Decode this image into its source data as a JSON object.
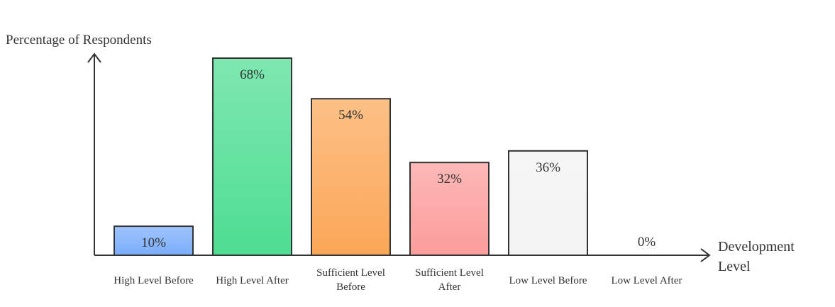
{
  "chart_data": {
    "type": "bar",
    "ylabel": "Percentage of Respondents",
    "xlabel_lines": [
      "Development",
      "Level"
    ],
    "ylim": [
      0,
      68
    ],
    "grid": false,
    "categories": [
      {
        "label_lines": [
          "High Level Before"
        ],
        "value": 10,
        "display": "10%",
        "color": "#7aadfb"
      },
      {
        "label_lines": [
          "High Level After"
        ],
        "value": 68,
        "display": "68%",
        "color": "#4ddd92"
      },
      {
        "label_lines": [
          "Sufficient Level",
          "Before"
        ],
        "value": 54,
        "display": "54%",
        "color": "#fba757"
      },
      {
        "label_lines": [
          "Sufficient Level",
          "After"
        ],
        "value": 32,
        "display": "32%",
        "color": "#fb9d9b"
      },
      {
        "label_lines": [
          "Low Level Before"
        ],
        "value": 36,
        "display": "36%",
        "color": "#f3f3f3"
      },
      {
        "label_lines": [
          "Low Level After"
        ],
        "value": 0,
        "display": "0%",
        "color": "#ffffff"
      }
    ]
  }
}
